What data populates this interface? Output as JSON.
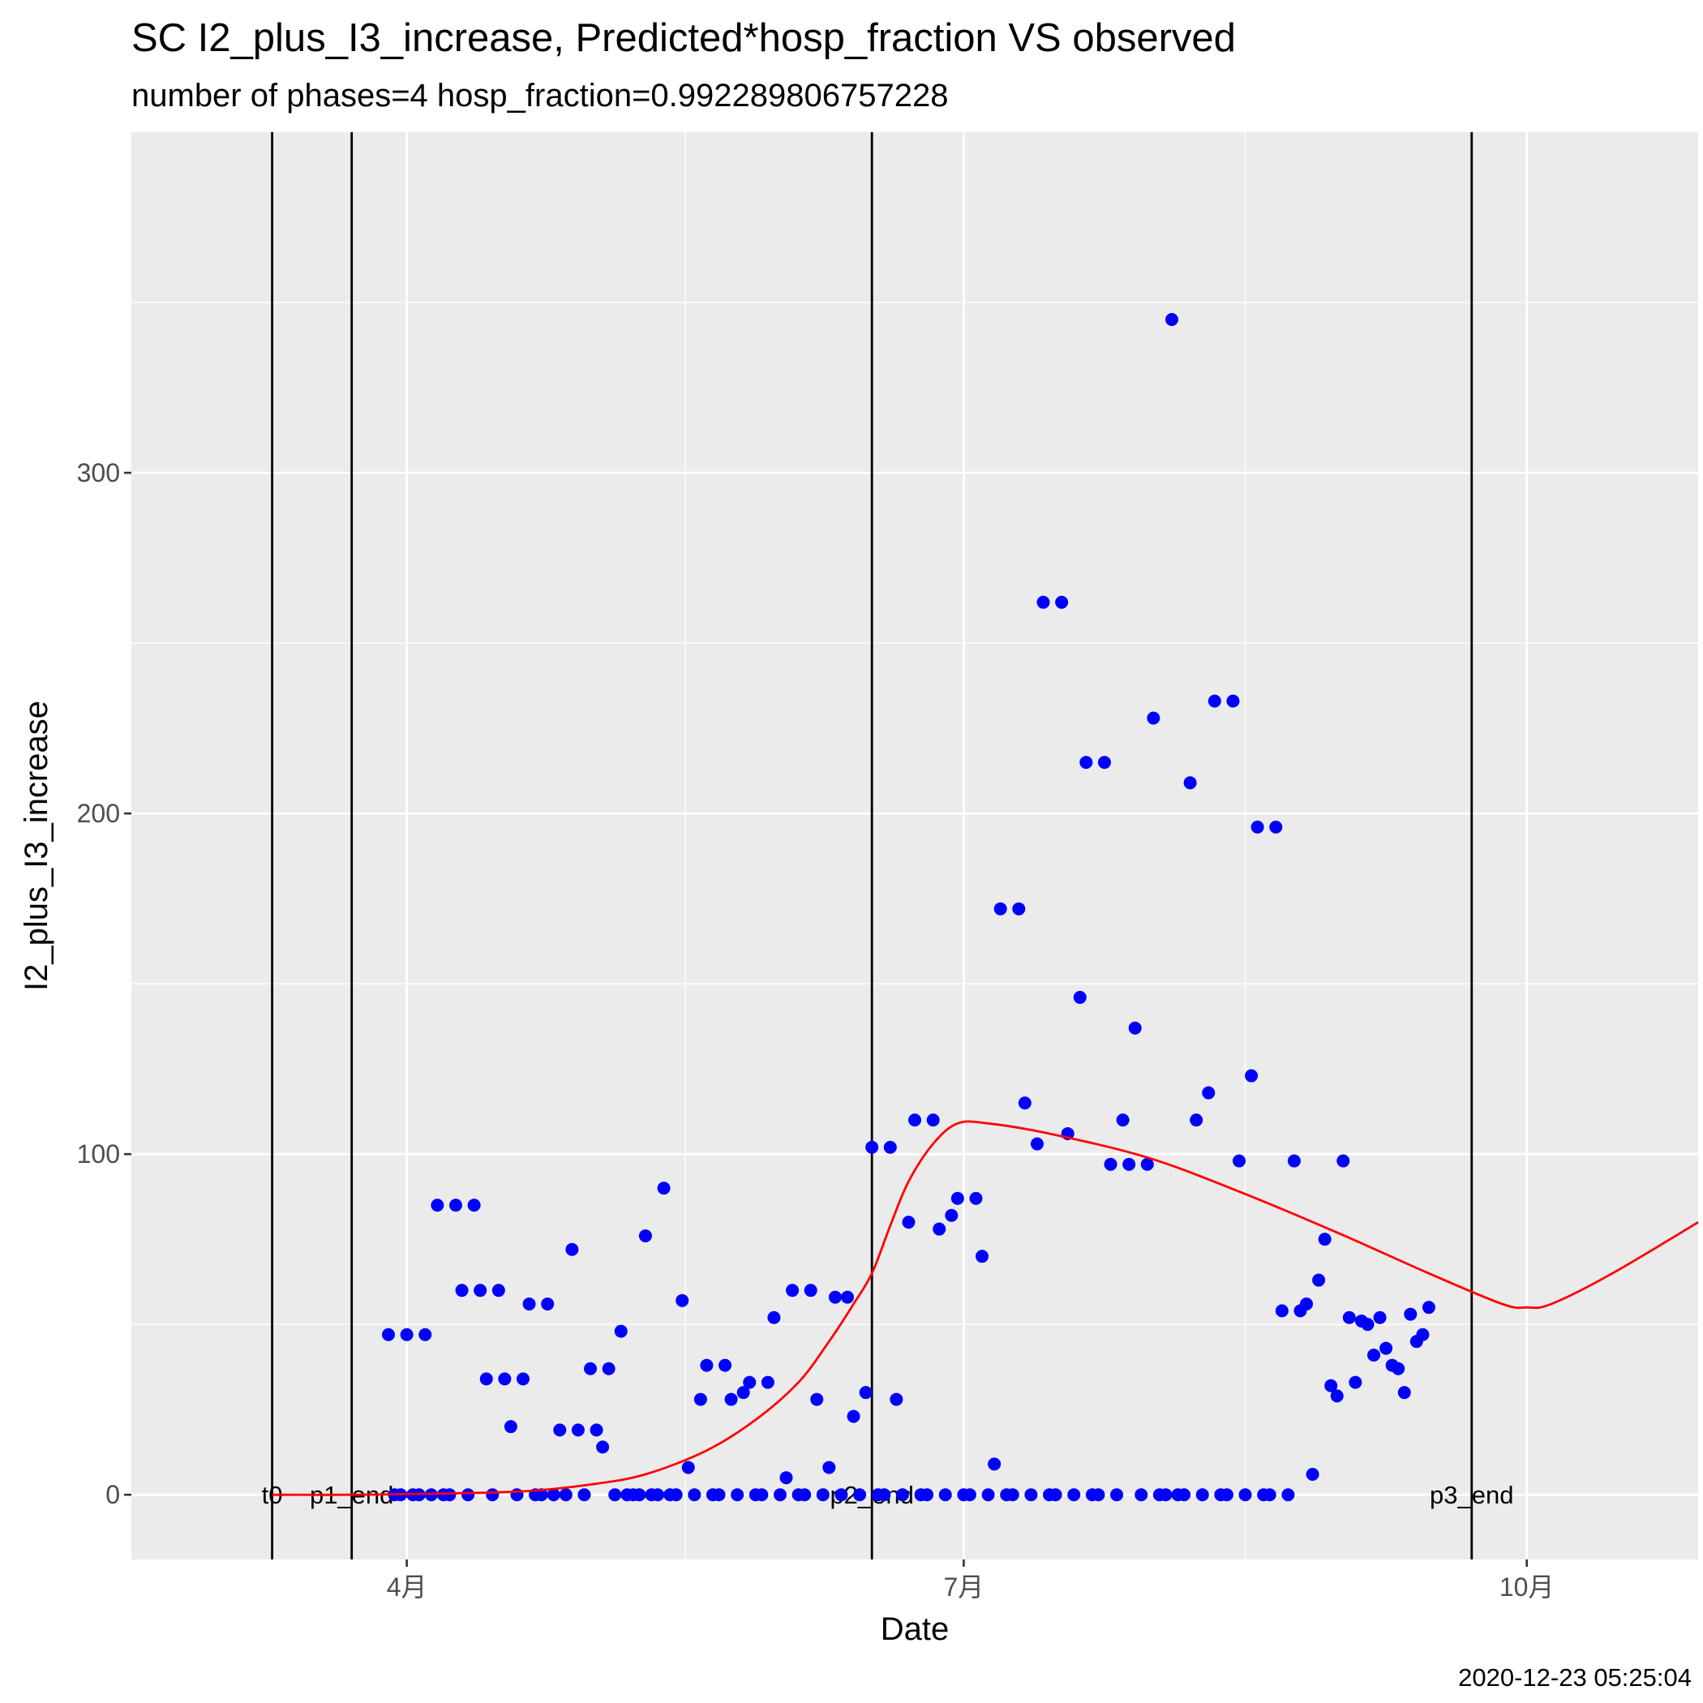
{
  "chart_data": {
    "type": "scatter",
    "title": "SC I2_plus_I3_increase, Predicted*hosp_fraction VS observed",
    "subtitle": "number of phases=4   hosp_fraction=0.992289806757228",
    "xlabel": "Date",
    "ylabel": "I2_plus_I3_increase",
    "caption": "2020-12-23 05:25:04",
    "x_domain": [
      "2020-02-16",
      "2020-10-29"
    ],
    "ylim": [
      -19,
      400
    ],
    "x_ticks": [
      {
        "date": "2020-04-01",
        "label": "4月"
      },
      {
        "date": "2020-07-01",
        "label": "7月"
      },
      {
        "date": "2020-10-01",
        "label": "10月"
      }
    ],
    "y_ticks": [
      0,
      100,
      200,
      300
    ],
    "grid": true,
    "phase_lines": [
      {
        "date": "2020-03-10",
        "label": "t0"
      },
      {
        "date": "2020-03-23",
        "label": "p1_end"
      },
      {
        "date": "2020-06-16",
        "label": "p2_end"
      },
      {
        "date": "2020-09-22",
        "label": "p3_end"
      }
    ],
    "observed_color": "#0000ff",
    "predicted_color": "#ff0000",
    "series": [
      {
        "type": "scatter",
        "points": [
          [
            "2020-03-29",
            47
          ],
          [
            "2020-03-30",
            0
          ],
          [
            "2020-03-31",
            0
          ],
          [
            "2020-04-01",
            47
          ],
          [
            "2020-04-02",
            0
          ],
          [
            "2020-04-03",
            0
          ],
          [
            "2020-04-04",
            47
          ],
          [
            "2020-04-05",
            0
          ],
          [
            "2020-04-06",
            85
          ],
          [
            "2020-04-07",
            0
          ],
          [
            "2020-04-08",
            0
          ],
          [
            "2020-04-09",
            85
          ],
          [
            "2020-04-10",
            60
          ],
          [
            "2020-04-11",
            0
          ],
          [
            "2020-04-12",
            85
          ],
          [
            "2020-04-13",
            60
          ],
          [
            "2020-04-14",
            34
          ],
          [
            "2020-04-15",
            0
          ],
          [
            "2020-04-16",
            60
          ],
          [
            "2020-04-17",
            34
          ],
          [
            "2020-04-18",
            20
          ],
          [
            "2020-04-19",
            0
          ],
          [
            "2020-04-20",
            34
          ],
          [
            "2020-04-21",
            56
          ],
          [
            "2020-04-22",
            0
          ],
          [
            "2020-04-23",
            0
          ],
          [
            "2020-04-24",
            56
          ],
          [
            "2020-04-25",
            0
          ],
          [
            "2020-04-26",
            19
          ],
          [
            "2020-04-27",
            0
          ],
          [
            "2020-04-28",
            72
          ],
          [
            "2020-04-29",
            19
          ],
          [
            "2020-04-30",
            0
          ],
          [
            "2020-05-01",
            37
          ],
          [
            "2020-05-02",
            19
          ],
          [
            "2020-05-03",
            14
          ],
          [
            "2020-05-04",
            37
          ],
          [
            "2020-05-05",
            0
          ],
          [
            "2020-05-06",
            48
          ],
          [
            "2020-05-07",
            0
          ],
          [
            "2020-05-08",
            0
          ],
          [
            "2020-05-09",
            0
          ],
          [
            "2020-05-10",
            76
          ],
          [
            "2020-05-11",
            0
          ],
          [
            "2020-05-12",
            0
          ],
          [
            "2020-05-13",
            90
          ],
          [
            "2020-05-14",
            0
          ],
          [
            "2020-05-15",
            0
          ],
          [
            "2020-05-16",
            57
          ],
          [
            "2020-05-17",
            8
          ],
          [
            "2020-05-18",
            0
          ],
          [
            "2020-05-19",
            28
          ],
          [
            "2020-05-20",
            38
          ],
          [
            "2020-05-21",
            0
          ],
          [
            "2020-05-22",
            0
          ],
          [
            "2020-05-23",
            38
          ],
          [
            "2020-05-24",
            28
          ],
          [
            "2020-05-25",
            0
          ],
          [
            "2020-05-26",
            30
          ],
          [
            "2020-05-27",
            33
          ],
          [
            "2020-05-28",
            0
          ],
          [
            "2020-05-29",
            0
          ],
          [
            "2020-05-30",
            33
          ],
          [
            "2020-05-31",
            52
          ],
          [
            "2020-06-01",
            0
          ],
          [
            "2020-06-02",
            5
          ],
          [
            "2020-06-03",
            60
          ],
          [
            "2020-06-04",
            0
          ],
          [
            "2020-06-05",
            0
          ],
          [
            "2020-06-06",
            60
          ],
          [
            "2020-06-07",
            28
          ],
          [
            "2020-06-08",
            0
          ],
          [
            "2020-06-09",
            8
          ],
          [
            "2020-06-10",
            58
          ],
          [
            "2020-06-11",
            0
          ],
          [
            "2020-06-12",
            58
          ],
          [
            "2020-06-13",
            23
          ],
          [
            "2020-06-14",
            0
          ],
          [
            "2020-06-15",
            30
          ],
          [
            "2020-06-16",
            102
          ],
          [
            "2020-06-17",
            0
          ],
          [
            "2020-06-18",
            0
          ],
          [
            "2020-06-19",
            102
          ],
          [
            "2020-06-20",
            28
          ],
          [
            "2020-06-21",
            0
          ],
          [
            "2020-06-22",
            80
          ],
          [
            "2020-06-23",
            110
          ],
          [
            "2020-06-24",
            0
          ],
          [
            "2020-06-25",
            0
          ],
          [
            "2020-06-26",
            110
          ],
          [
            "2020-06-27",
            78
          ],
          [
            "2020-06-28",
            0
          ],
          [
            "2020-06-29",
            82
          ],
          [
            "2020-06-30",
            87
          ],
          [
            "2020-07-01",
            0
          ],
          [
            "2020-07-02",
            0
          ],
          [
            "2020-07-03",
            87
          ],
          [
            "2020-07-04",
            70
          ],
          [
            "2020-07-05",
            0
          ],
          [
            "2020-07-06",
            9
          ],
          [
            "2020-07-07",
            172
          ],
          [
            "2020-07-08",
            0
          ],
          [
            "2020-07-09",
            0
          ],
          [
            "2020-07-10",
            172
          ],
          [
            "2020-07-11",
            115
          ],
          [
            "2020-07-12",
            0
          ],
          [
            "2020-07-13",
            103
          ],
          [
            "2020-07-14",
            262
          ],
          [
            "2020-07-15",
            0
          ],
          [
            "2020-07-16",
            0
          ],
          [
            "2020-07-17",
            262
          ],
          [
            "2020-07-18",
            106
          ],
          [
            "2020-07-19",
            0
          ],
          [
            "2020-07-20",
            146
          ],
          [
            "2020-07-21",
            215
          ],
          [
            "2020-07-22",
            0
          ],
          [
            "2020-07-23",
            0
          ],
          [
            "2020-07-24",
            215
          ],
          [
            "2020-07-25",
            97
          ],
          [
            "2020-07-26",
            0
          ],
          [
            "2020-07-27",
            110
          ],
          [
            "2020-07-28",
            97
          ],
          [
            "2020-07-29",
            137
          ],
          [
            "2020-07-30",
            0
          ],
          [
            "2020-07-31",
            97
          ],
          [
            "2020-08-01",
            228
          ],
          [
            "2020-08-02",
            0
          ],
          [
            "2020-08-03",
            0
          ],
          [
            "2020-08-04",
            345
          ],
          [
            "2020-08-05",
            0
          ],
          [
            "2020-08-06",
            0
          ],
          [
            "2020-08-07",
            209
          ],
          [
            "2020-08-08",
            110
          ],
          [
            "2020-08-09",
            0
          ],
          [
            "2020-08-10",
            118
          ],
          [
            "2020-08-11",
            233
          ],
          [
            "2020-08-12",
            0
          ],
          [
            "2020-08-13",
            0
          ],
          [
            "2020-08-14",
            233
          ],
          [
            "2020-08-15",
            98
          ],
          [
            "2020-08-16",
            0
          ],
          [
            "2020-08-17",
            123
          ],
          [
            "2020-08-18",
            196
          ],
          [
            "2020-08-19",
            0
          ],
          [
            "2020-08-20",
            0
          ],
          [
            "2020-08-21",
            196
          ],
          [
            "2020-08-22",
            54
          ],
          [
            "2020-08-23",
            0
          ],
          [
            "2020-08-24",
            98
          ],
          [
            "2020-08-25",
            54
          ],
          [
            "2020-08-26",
            56
          ],
          [
            "2020-08-27",
            6
          ],
          [
            "2020-08-28",
            63
          ],
          [
            "2020-08-29",
            75
          ],
          [
            "2020-08-30",
            32
          ],
          [
            "2020-08-31",
            29
          ],
          [
            "2020-09-01",
            98
          ],
          [
            "2020-09-02",
            52
          ],
          [
            "2020-09-03",
            33
          ],
          [
            "2020-09-04",
            51
          ],
          [
            "2020-09-05",
            50
          ],
          [
            "2020-09-06",
            41
          ],
          [
            "2020-09-07",
            52
          ],
          [
            "2020-09-08",
            43
          ],
          [
            "2020-09-09",
            38
          ],
          [
            "2020-09-10",
            37
          ],
          [
            "2020-09-11",
            30
          ],
          [
            "2020-09-12",
            53
          ],
          [
            "2020-09-13",
            45
          ],
          [
            "2020-09-14",
            47
          ],
          [
            "2020-09-15",
            55
          ]
        ]
      },
      {
        "type": "line",
        "points": [
          [
            "2020-03-10",
            0
          ],
          [
            "2020-03-23",
            0
          ],
          [
            "2020-04-05",
            0.3
          ],
          [
            "2020-04-20",
            1
          ],
          [
            "2020-05-01",
            3
          ],
          [
            "2020-05-10",
            6
          ],
          [
            "2020-05-20",
            13
          ],
          [
            "2020-05-28",
            22
          ],
          [
            "2020-06-04",
            33
          ],
          [
            "2020-06-09",
            45
          ],
          [
            "2020-06-13",
            56
          ],
          [
            "2020-06-16",
            65
          ],
          [
            "2020-06-19",
            79
          ],
          [
            "2020-06-22",
            92
          ],
          [
            "2020-06-26",
            103
          ],
          [
            "2020-06-30",
            109
          ],
          [
            "2020-07-05",
            109
          ],
          [
            "2020-07-15",
            106
          ],
          [
            "2020-07-31",
            99
          ],
          [
            "2020-08-15",
            89
          ],
          [
            "2020-08-31",
            77
          ],
          [
            "2020-09-15",
            65
          ],
          [
            "2020-09-27",
            56
          ],
          [
            "2020-10-01",
            55
          ],
          [
            "2020-10-05",
            56
          ],
          [
            "2020-10-15",
            65
          ],
          [
            "2020-10-29",
            80
          ]
        ]
      }
    ]
  }
}
